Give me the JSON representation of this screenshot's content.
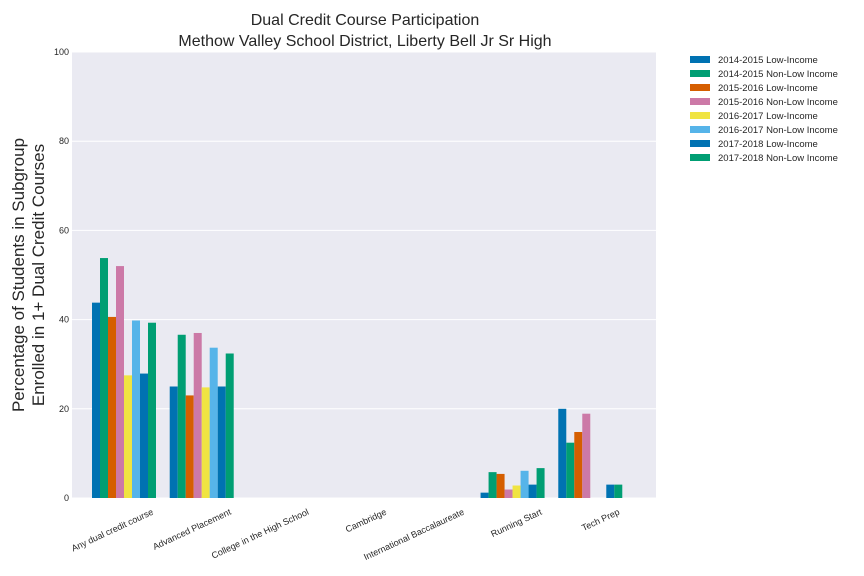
{
  "chart_data": {
    "type": "bar",
    "title": "Dual Credit Course Participation",
    "subtitle": "Methow Valley School District, Liberty Bell Jr Sr High",
    "xlabel": "",
    "ylabel": "Percentage of Students in Subgroup",
    "ylabel2": "Enrolled in 1+ Dual Credit Courses",
    "ylim": [
      0,
      100
    ],
    "yticks": [
      "0",
      "20",
      "40",
      "60",
      "80",
      "100"
    ],
    "grid": true,
    "legend_position": "outside-top-right",
    "categories": [
      "Any dual credit course",
      "Advanced Placement",
      "College in the High School",
      "Cambridge",
      "International Baccalaureate",
      "Running Start",
      "Tech Prep"
    ],
    "series": [
      {
        "name": "2014-2015 Low-Income",
        "color": "#0072b2",
        "values": [
          43.8,
          25.0,
          0,
          0,
          0,
          1.2,
          20.0
        ]
      },
      {
        "name": "2014-2015 Non-Low Income",
        "color": "#009e73",
        "values": [
          53.8,
          36.6,
          0,
          0,
          0,
          5.8,
          12.4
        ]
      },
      {
        "name": "2015-2016 Low-Income",
        "color": "#d55e00",
        "values": [
          40.6,
          23.0,
          0,
          0,
          0,
          5.4,
          14.8
        ]
      },
      {
        "name": "2015-2016 Non-Low Income",
        "color": "#cc79a7",
        "values": [
          52.0,
          37.0,
          0,
          0,
          0,
          1.9,
          18.9
        ]
      },
      {
        "name": "2016-2017 Low-Income",
        "color": "#f0e442",
        "values": [
          27.5,
          24.8,
          0,
          0,
          0,
          2.8,
          0
        ]
      },
      {
        "name": "2016-2017 Non-Low Income",
        "color": "#56b4e9",
        "values": [
          39.8,
          33.7,
          0,
          0,
          0,
          6.1,
          0
        ]
      },
      {
        "name": "2017-2018 Low-Income",
        "color": "#0072b2",
        "values": [
          27.9,
          25.0,
          0,
          0,
          0,
          3.0,
          3.0
        ]
      },
      {
        "name": "2017-2018 Non-Low Income",
        "color": "#009e73",
        "values": [
          39.3,
          32.4,
          0,
          0,
          0,
          6.7,
          3.0
        ]
      }
    ]
  }
}
